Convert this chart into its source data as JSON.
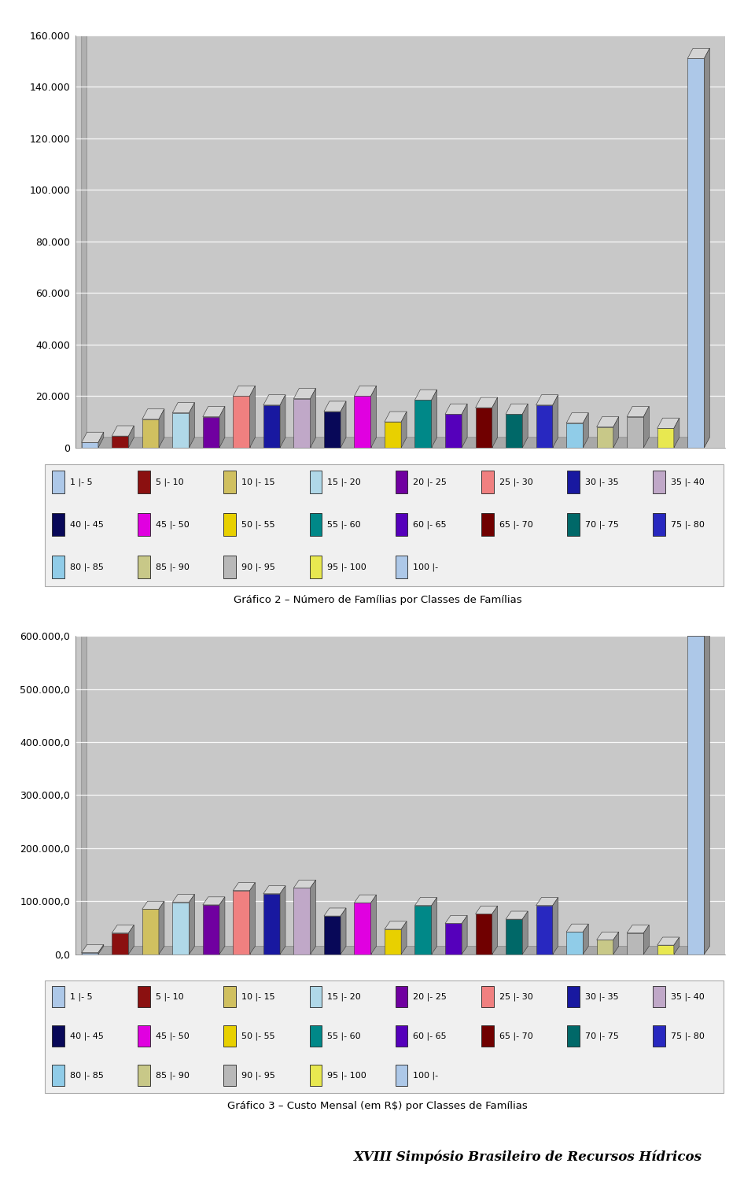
{
  "chart1_title": "Gráfico 2 – Número de Famílias por Classes de Famílias",
  "chart2_title": "Gráfico 3 – Custo Mensal (em R$) por Classes de Famílias",
  "footer": "XVIII Simpósio Brasileiro de Recursos Hídricos",
  "legend_labels": [
    "1 |- 5",
    "5 |- 10",
    "10 |- 15",
    "15 |- 20",
    "20 |- 25",
    "25 |- 30",
    "30 |- 35",
    "35 |- 40",
    "40 |- 45",
    "45 |- 50",
    "50 |- 55",
    "55 |- 60",
    "60 |- 65",
    "65 |- 70",
    "70 |- 75",
    "75 |- 80",
    "80 |- 85",
    "85 |- 90",
    "90 |- 95",
    "95 |- 100",
    "100 |-"
  ],
  "bar_colors": [
    "#adc8e8",
    "#8b1010",
    "#d0c060",
    "#b0d8e8",
    "#7000a0",
    "#f08080",
    "#1818a0",
    "#c0a8c8",
    "#080858",
    "#e000e0",
    "#e8d000",
    "#008888",
    "#5500bb",
    "#700000",
    "#006868",
    "#2828c0",
    "#90cce8",
    "#c8c888",
    "#b8b8b8",
    "#e8e850",
    "#adc8e8"
  ],
  "chart1_values": [
    2000,
    4500,
    11000,
    13500,
    12000,
    20000,
    16500,
    19000,
    14000,
    20000,
    10000,
    18500,
    13000,
    15500,
    13000,
    16500,
    9500,
    8000,
    12000,
    7500,
    151000
  ],
  "chart2_values": [
    3000,
    40000,
    85000,
    98000,
    93000,
    120000,
    114000,
    125000,
    72000,
    97000,
    47000,
    92000,
    58000,
    76000,
    66000,
    92000,
    42000,
    27000,
    40000,
    17000,
    600000
  ],
  "chart1_yticks": [
    0,
    20000,
    40000,
    60000,
    80000,
    100000,
    120000,
    140000,
    160000
  ],
  "chart2_yticks": [
    0,
    100000,
    200000,
    300000,
    400000,
    500000,
    600000
  ],
  "chart1_ylim_max": 160000,
  "chart2_ylim_max": 600000,
  "bg_color": "#c8c8c8",
  "plot_bg": "#c8c8c8"
}
